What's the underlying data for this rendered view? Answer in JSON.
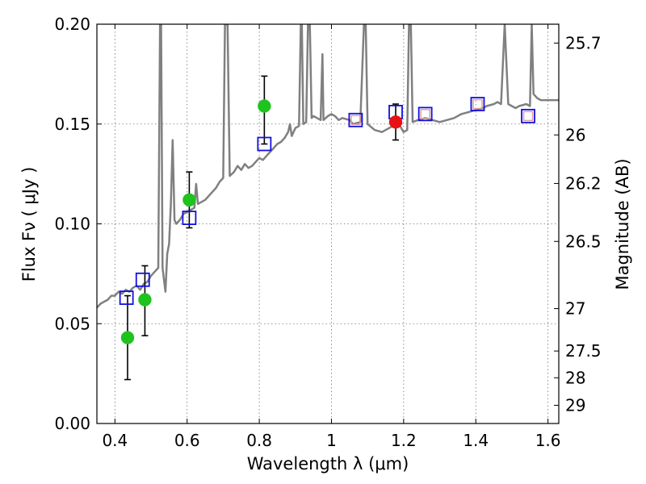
{
  "chart_data": {
    "type": "scatter",
    "xlabel": "Wavelength  λ (μm)",
    "ylabel": "Flux  Fν  ( μJy )",
    "y2label": "Magnitude (AB)",
    "xlim": [
      0.35,
      1.63
    ],
    "ylim": [
      0.0,
      0.2
    ],
    "grid": true,
    "x_ticks": [
      {
        "value": 0.4,
        "label": "0.4"
      },
      {
        "value": 0.6,
        "label": "0.6"
      },
      {
        "value": 0.8,
        "label": "0.8"
      },
      {
        "value": 1.0,
        "label": "1"
      },
      {
        "value": 1.2,
        "label": "1.2"
      },
      {
        "value": 1.4,
        "label": "1.4"
      },
      {
        "value": 1.6,
        "label": "1.6"
      }
    ],
    "y_ticks": [
      {
        "value": 0.0,
        "label": "0.00"
      },
      {
        "value": 0.05,
        "label": "0.05"
      },
      {
        "value": 0.1,
        "label": "0.10"
      },
      {
        "value": 0.15,
        "label": "0.15"
      },
      {
        "value": 0.2,
        "label": "0.20"
      }
    ],
    "y2_ticks": [
      {
        "mag": 25.7,
        "label": "25.7"
      },
      {
        "mag": 26,
        "label": "26"
      },
      {
        "mag": 26.2,
        "label": "26.2"
      },
      {
        "mag": 26.5,
        "label": "26.5"
      },
      {
        "mag": 27,
        "label": "27"
      },
      {
        "mag": 27.5,
        "label": "27.5"
      },
      {
        "mag": 28,
        "label": "28"
      },
      {
        "mag": 29,
        "label": "29"
      }
    ],
    "colors": {
      "model": "#808080",
      "obs_green": "#1ec31e",
      "obs_red": "#e81010",
      "model_box": "#1010e0",
      "model_box_inner": "#e0a0a0",
      "errorbar": "#000000"
    },
    "series": [
      {
        "name": "model spectrum",
        "type": "line",
        "points": [
          [
            0.35,
            0.058
          ],
          [
            0.36,
            0.06
          ],
          [
            0.37,
            0.061
          ],
          [
            0.38,
            0.062
          ],
          [
            0.39,
            0.064
          ],
          [
            0.4,
            0.064
          ],
          [
            0.41,
            0.066
          ],
          [
            0.42,
            0.065
          ],
          [
            0.43,
            0.067
          ],
          [
            0.44,
            0.066
          ],
          [
            0.45,
            0.068
          ],
          [
            0.46,
            0.069
          ],
          [
            0.47,
            0.067
          ],
          [
            0.48,
            0.07
          ],
          [
            0.49,
            0.071
          ],
          [
            0.5,
            0.074
          ],
          [
            0.51,
            0.076
          ],
          [
            0.52,
            0.078
          ],
          [
            0.525,
            0.2
          ],
          [
            0.528,
            0.2
          ],
          [
            0.532,
            0.078
          ],
          [
            0.54,
            0.066
          ],
          [
            0.545,
            0.085
          ],
          [
            0.55,
            0.09
          ],
          [
            0.555,
            0.11
          ],
          [
            0.56,
            0.142
          ],
          [
            0.565,
            0.102
          ],
          [
            0.57,
            0.1
          ],
          [
            0.58,
            0.102
          ],
          [
            0.59,
            0.105
          ],
          [
            0.6,
            0.106
          ],
          [
            0.61,
            0.107
          ],
          [
            0.62,
            0.108
          ],
          [
            0.625,
            0.12
          ],
          [
            0.63,
            0.11
          ],
          [
            0.64,
            0.111
          ],
          [
            0.65,
            0.112
          ],
          [
            0.66,
            0.114
          ],
          [
            0.67,
            0.116
          ],
          [
            0.68,
            0.118
          ],
          [
            0.69,
            0.121
          ],
          [
            0.7,
            0.123
          ],
          [
            0.705,
            0.2
          ],
          [
            0.712,
            0.2
          ],
          [
            0.718,
            0.124
          ],
          [
            0.73,
            0.126
          ],
          [
            0.74,
            0.129
          ],
          [
            0.75,
            0.127
          ],
          [
            0.76,
            0.13
          ],
          [
            0.77,
            0.128
          ],
          [
            0.78,
            0.129
          ],
          [
            0.79,
            0.131
          ],
          [
            0.8,
            0.133
          ],
          [
            0.81,
            0.132
          ],
          [
            0.82,
            0.134
          ],
          [
            0.83,
            0.136
          ],
          [
            0.84,
            0.138
          ],
          [
            0.85,
            0.14
          ],
          [
            0.86,
            0.141
          ],
          [
            0.87,
            0.143
          ],
          [
            0.88,
            0.146
          ],
          [
            0.885,
            0.15
          ],
          [
            0.89,
            0.144
          ],
          [
            0.9,
            0.148
          ],
          [
            0.91,
            0.149
          ],
          [
            0.915,
            0.2
          ],
          [
            0.918,
            0.2
          ],
          [
            0.922,
            0.15
          ],
          [
            0.93,
            0.151
          ],
          [
            0.935,
            0.2
          ],
          [
            0.94,
            0.2
          ],
          [
            0.945,
            0.153
          ],
          [
            0.95,
            0.154
          ],
          [
            0.96,
            0.153
          ],
          [
            0.97,
            0.152
          ],
          [
            0.975,
            0.185
          ],
          [
            0.978,
            0.152
          ],
          [
            0.99,
            0.154
          ],
          [
            1.0,
            0.155
          ],
          [
            1.01,
            0.154
          ],
          [
            1.02,
            0.152
          ],
          [
            1.03,
            0.153
          ],
          [
            1.05,
            0.152
          ],
          [
            1.06,
            0.15
          ],
          [
            1.08,
            0.151
          ],
          [
            1.09,
            0.2
          ],
          [
            1.095,
            0.2
          ],
          [
            1.1,
            0.15
          ],
          [
            1.12,
            0.147
          ],
          [
            1.14,
            0.146
          ],
          [
            1.16,
            0.148
          ],
          [
            1.18,
            0.15
          ],
          [
            1.19,
            0.149
          ],
          [
            1.2,
            0.146
          ],
          [
            1.21,
            0.147
          ],
          [
            1.215,
            0.2
          ],
          [
            1.22,
            0.2
          ],
          [
            1.225,
            0.151
          ],
          [
            1.24,
            0.152
          ],
          [
            1.26,
            0.153
          ],
          [
            1.28,
            0.152
          ],
          [
            1.3,
            0.151
          ],
          [
            1.32,
            0.152
          ],
          [
            1.34,
            0.153
          ],
          [
            1.36,
            0.155
          ],
          [
            1.38,
            0.156
          ],
          [
            1.4,
            0.157
          ],
          [
            1.42,
            0.158
          ],
          [
            1.43,
            0.159
          ],
          [
            1.45,
            0.16
          ],
          [
            1.46,
            0.161
          ],
          [
            1.47,
            0.16
          ],
          [
            1.48,
            0.2
          ],
          [
            1.49,
            0.16
          ],
          [
            1.5,
            0.159
          ],
          [
            1.51,
            0.158
          ],
          [
            1.52,
            0.159
          ],
          [
            1.54,
            0.16
          ],
          [
            1.55,
            0.159
          ],
          [
            1.555,
            0.2
          ],
          [
            1.56,
            0.165
          ],
          [
            1.57,
            0.163
          ],
          [
            1.58,
            0.162
          ],
          [
            1.6,
            0.162
          ],
          [
            1.63,
            0.162
          ]
        ]
      },
      {
        "name": "observed (green)",
        "type": "scatter",
        "points": [
          {
            "x": 0.435,
            "y": 0.043,
            "yerr_low": 0.022,
            "yerr_high": 0.064
          },
          {
            "x": 0.483,
            "y": 0.062,
            "yerr_low": 0.044,
            "yerr_high": 0.079
          },
          {
            "x": 0.606,
            "y": 0.112,
            "yerr_low": 0.098,
            "yerr_high": 0.126
          },
          {
            "x": 0.814,
            "y": 0.159,
            "yerr_low": 0.14,
            "yerr_high": 0.174
          }
        ]
      },
      {
        "name": "observed (red)",
        "type": "scatter",
        "points": [
          {
            "x": 1.178,
            "y": 0.151,
            "yerr_low": 0.142,
            "yerr_high": 0.16
          }
        ]
      },
      {
        "name": "model photometry (blue squares)",
        "type": "scatter",
        "points": [
          {
            "x": 0.432,
            "y": 0.063
          },
          {
            "x": 0.477,
            "y": 0.072
          },
          {
            "x": 0.606,
            "y": 0.103
          },
          {
            "x": 0.814,
            "y": 0.14
          },
          {
            "x": 1.067,
            "y": 0.152
          },
          {
            "x": 1.178,
            "y": 0.156
          },
          {
            "x": 1.26,
            "y": 0.155
          },
          {
            "x": 1.405,
            "y": 0.16
          },
          {
            "x": 1.545,
            "y": 0.154
          }
        ]
      },
      {
        "name": "model photometry (red inner squares)",
        "type": "scatter",
        "points": [
          {
            "x": 1.067,
            "y": 0.152
          },
          {
            "x": 1.26,
            "y": 0.155
          },
          {
            "x": 1.405,
            "y": 0.16
          },
          {
            "x": 1.545,
            "y": 0.154
          }
        ]
      }
    ]
  }
}
